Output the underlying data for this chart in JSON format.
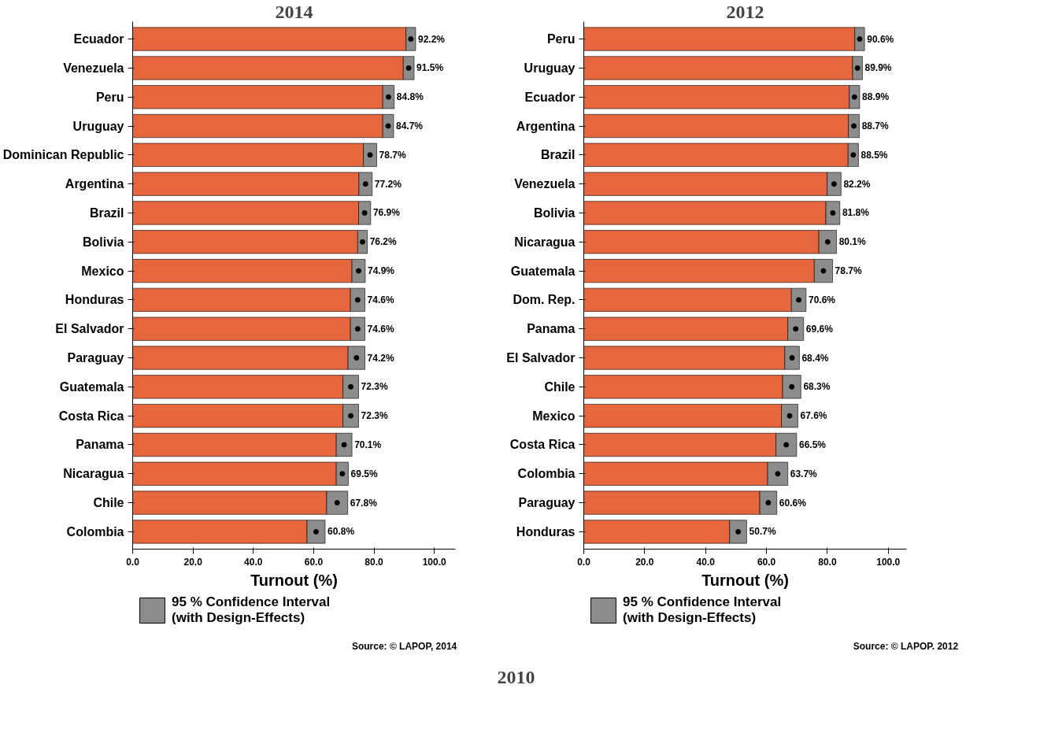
{
  "chart_data": [
    {
      "type": "bar",
      "orientation": "horizontal",
      "stacked": true,
      "title": "2014",
      "xlabel": "Turnout (%)",
      "categories": [
        "Ecuador",
        "Venezuela",
        "Peru",
        "Uruguay",
        "Dominican Republic",
        "Argentina",
        "Brazil",
        "Bolivia",
        "Mexico",
        "Honduras",
        "El Salvador",
        "Paraguay",
        "Guatemala",
        "Costa Rica",
        "Panama",
        "Nicaragua",
        "Chile",
        "Colombia"
      ],
      "series": [
        {
          "type": "bar",
          "color": "#e6663e",
          "values": [
            90.6,
            89.7,
            82.9,
            82.9,
            76.5,
            75.0,
            74.9,
            74.6,
            72.7,
            72.2,
            72.2,
            71.4,
            69.7,
            69.7,
            67.5,
            67.5,
            64.3,
            57.8
          ]
        },
        {
          "type": "bar",
          "name": "95 % Confidence Interval\n(with Design-Effects)",
          "color": "#8c8c8c",
          "values": [
            3.2,
            3.6,
            3.8,
            3.6,
            4.4,
            4.4,
            4.0,
            3.2,
            4.4,
            4.8,
            4.8,
            5.6,
            5.2,
            5.2,
            5.2,
            4.0,
            7.0,
            6.0
          ]
        },
        {
          "type": "scatter",
          "color": "#000000",
          "marker": "circle",
          "values": [
            92.2,
            91.5,
            84.8,
            84.7,
            78.7,
            77.2,
            76.9,
            76.2,
            74.9,
            74.6,
            74.6,
            74.2,
            72.3,
            72.3,
            70.1,
            69.5,
            67.8,
            60.8
          ],
          "value_labels": [
            "92.2%",
            "91.5%",
            "84.8%",
            "84.7%",
            "78.7%",
            "77.2%",
            "76.9%",
            "76.2%",
            "74.9%",
            "74.6%",
            "74.6%",
            "74.2%",
            "72.3%",
            "72.3%",
            "70.1%",
            "69.5%",
            "67.8%",
            "60.8%"
          ]
        }
      ],
      "xlim": [
        0,
        107
      ],
      "xticks": [
        {
          "value": 0,
          "label": "0.0"
        },
        {
          "value": 20,
          "label": "20.0"
        },
        {
          "value": 40,
          "label": "40.0"
        },
        {
          "value": 60,
          "label": "60.0"
        },
        {
          "value": 80,
          "label": "80.0"
        },
        {
          "value": 100,
          "label": "100.0"
        }
      ],
      "grid": false,
      "legend": "bottom left",
      "annotations": [
        "Source: © LAPOP, 2014"
      ]
    },
    {
      "type": "bar",
      "orientation": "horizontal",
      "stacked": true,
      "title": "2012",
      "xlabel": "Turnout (%)",
      "categories": [
        "Peru",
        "Uruguay",
        "Ecuador",
        "Argentina",
        "Brazil",
        "Venezuela",
        "Bolivia",
        "Nicaragua",
        "Guatemala",
        "Dom. Rep.",
        "Panama",
        "El Salvador",
        "Chile",
        "Mexico",
        "Costa Rica",
        "Colombia",
        "Paraguay",
        "Honduras"
      ],
      "series": [
        {
          "type": "bar",
          "color": "#e6663e",
          "values": [
            89.0,
            88.3,
            87.2,
            86.9,
            86.8,
            79.9,
            79.5,
            77.2,
            75.7,
            68.2,
            67.0,
            66.0,
            65.3,
            64.9,
            63.1,
            60.4,
            57.8,
            47.9
          ]
        },
        {
          "type": "bar",
          "name": "95 % Confidence Interval\n(with Design-Effects)",
          "color": "#8c8c8c",
          "values": [
            3.2,
            3.2,
            3.4,
            3.6,
            3.4,
            4.6,
            4.6,
            5.8,
            6.0,
            4.8,
            5.2,
            4.8,
            6.0,
            5.4,
            6.8,
            6.6,
            5.6,
            5.6
          ]
        },
        {
          "type": "scatter",
          "color": "#000000",
          "marker": "circle",
          "values": [
            90.6,
            89.9,
            88.9,
            88.7,
            88.5,
            82.2,
            81.8,
            80.1,
            78.7,
            70.6,
            69.6,
            68.4,
            68.3,
            67.6,
            66.5,
            63.7,
            60.6,
            50.7
          ],
          "value_labels": [
            "90.6%",
            "89.9%",
            "88.9%",
            "88.7%",
            "88.5%",
            "82.2%",
            "81.8%",
            "80.1%",
            "78.7%",
            "70.6%",
            "69.6%",
            "68.4%",
            "68.3%",
            "67.6%",
            "66.5%",
            "63.7%",
            "60.6%",
            "50.7%"
          ]
        }
      ],
      "xlim": [
        0,
        106
      ],
      "xticks": [
        {
          "value": 0,
          "label": "0.0"
        },
        {
          "value": 20,
          "label": "20.0"
        },
        {
          "value": 40,
          "label": "40.0"
        },
        {
          "value": 60,
          "label": "60.0"
        },
        {
          "value": 80,
          "label": "80.0"
        },
        {
          "value": 100,
          "label": "100.0"
        }
      ],
      "grid": false,
      "legend": "bottom left",
      "annotations": [
        "Source: © LAPOP. 2012"
      ]
    },
    {
      "type": "other",
      "title": "2010"
    }
  ]
}
